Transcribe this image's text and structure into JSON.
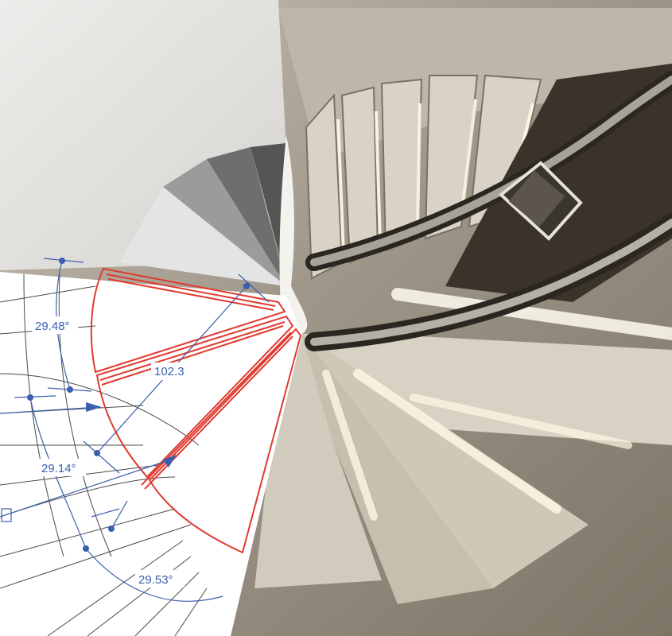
{
  "drawing": {
    "dimensions": {
      "angle_top": "29.48°",
      "angle_middle": "29.14°",
      "angle_bottom": "29.53°",
      "radius": "102.3"
    },
    "colors": {
      "tread_outline": "#e03a2f",
      "dimension": "#3b5fae",
      "grid": "#4a4a4a",
      "paper": "#ffffff"
    }
  },
  "photo": {
    "subject": "spiral staircase with illuminated steps and steel handrail",
    "icons": [
      "spiral-stair-photo"
    ]
  }
}
